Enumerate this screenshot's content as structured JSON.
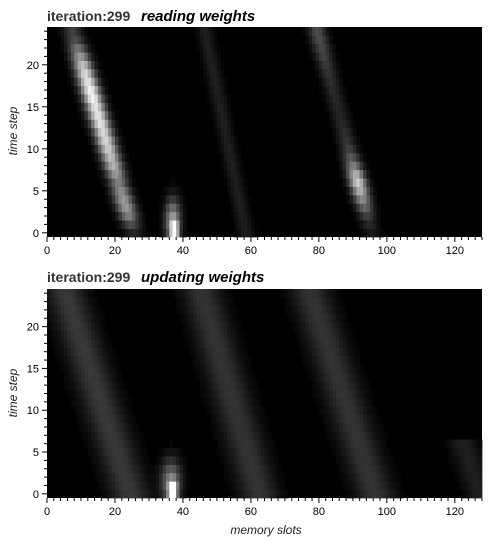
{
  "chart_data": [
    {
      "type": "heatmap",
      "iteration_label": "iteration:299",
      "title": "reading weights",
      "xlabel": "",
      "ylabel": "time step",
      "xlim": [
        0,
        128
      ],
      "ylim": [
        0,
        24
      ],
      "xticks": [
        "0",
        "20",
        "40",
        "60",
        "80",
        "100",
        "120"
      ],
      "yticks": [
        "0",
        "5",
        "10",
        "15",
        "20"
      ],
      "colormap": [
        "#000000",
        "#ffffff"
      ],
      "value_range": [
        0,
        1
      ],
      "n_rows": 25,
      "n_cols": 128,
      "ridges": [
        {
          "start_row": 0,
          "end_row": 24,
          "col_at_start": 25,
          "col_at_end": 7,
          "width": 2.0,
          "intensity": [
            0.15,
            0.3,
            0.5,
            0.6,
            0.6,
            0.55,
            0.5,
            0.6,
            0.7,
            0.75,
            0.8,
            0.85,
            0.85,
            0.9,
            0.9,
            0.9,
            0.95,
            0.95,
            0.9,
            0.85,
            0.75,
            0.6,
            0.45,
            0.3,
            0.25
          ]
        },
        {
          "start_row": 0,
          "end_row": 24,
          "col_at_start": 58,
          "col_at_end": 46,
          "width": 1.6,
          "intensity": 0.12
        },
        {
          "start_row": 0,
          "end_row": 24,
          "col_at_start": 95,
          "col_at_end": 79,
          "width": 1.8,
          "intensity": [
            0.1,
            0.15,
            0.25,
            0.4,
            0.55,
            0.7,
            0.8,
            0.7,
            0.5,
            0.35,
            0.25,
            0.2,
            0.18,
            0.16,
            0.15,
            0.15,
            0.15,
            0.16,
            0.18,
            0.2,
            0.22,
            0.25,
            0.28,
            0.3,
            0.3
          ]
        }
      ],
      "blobs": [
        {
          "col": 36.5,
          "row": 1.5,
          "col_sigma": 1.6,
          "row_sigma": 1.8,
          "intensity": 0.6
        },
        {
          "col": 37,
          "row": 0.3,
          "col_sigma": 0.8,
          "row_sigma": 0.7,
          "intensity": 0.9
        }
      ]
    },
    {
      "type": "heatmap",
      "iteration_label": "iteration:299",
      "title": "updating weights",
      "xlabel": "memory slots",
      "ylabel": "time step",
      "xlim": [
        0,
        128
      ],
      "ylim": [
        0,
        24
      ],
      "xticks": [
        "0",
        "20",
        "40",
        "60",
        "80",
        "100",
        "120"
      ],
      "yticks": [
        "0",
        "5",
        "10",
        "15",
        "20"
      ],
      "colormap": [
        "#000000",
        "#ffffff"
      ],
      "value_range": [
        0,
        1
      ],
      "n_rows": 25,
      "n_cols": 128,
      "ridges": [
        {
          "start_row": 0,
          "end_row": 24,
          "col_at_start": 24,
          "col_at_end": 5,
          "width": 4.0,
          "intensity": 0.22
        },
        {
          "start_row": 0,
          "end_row": 24,
          "col_at_start": 62,
          "col_at_end": 45,
          "width": 4.0,
          "intensity": 0.2
        },
        {
          "start_row": 0,
          "end_row": 24,
          "col_at_start": 96,
          "col_at_end": 77,
          "width": 4.0,
          "intensity": 0.2
        },
        {
          "start_row": 0,
          "end_row": 6,
          "col_at_start": 127,
          "col_at_end": 122,
          "width": 3.0,
          "intensity": 0.12
        }
      ],
      "blobs": [
        {
          "col": 36,
          "row": 1.5,
          "col_sigma": 2.0,
          "row_sigma": 1.8,
          "intensity": 0.5
        },
        {
          "col": 36.5,
          "row": 0.4,
          "col_sigma": 0.9,
          "row_sigma": 0.7,
          "intensity": 0.95
        }
      ]
    }
  ]
}
